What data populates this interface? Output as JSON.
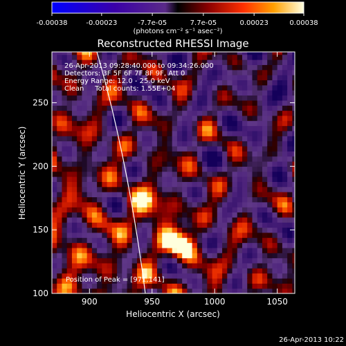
{
  "chart_data": {
    "type": "heatmap",
    "title": "Reconstructed RHESSI Image",
    "xlabel": "Heliocentric X (arcsec)",
    "ylabel": "Heliocentric Y (arcsec)",
    "xlim": [
      870,
      1064
    ],
    "ylim": [
      100,
      290
    ],
    "xticks": [
      "900",
      "950",
      "1000",
      "1050"
    ],
    "yticks": [
      "100",
      "150",
      "200",
      "250"
    ],
    "xtick_values": [
      900,
      950,
      1000,
      1050
    ],
    "ytick_values": [
      100,
      150,
      200,
      250
    ],
    "colorbar": {
      "range": [
        -0.00038,
        0.00038
      ],
      "ticks": [
        "-0.00038",
        "-0.00023",
        "-7.7e-05",
        "7.7e-05",
        "0.00023",
        "0.00038"
      ],
      "tick_values": [
        -0.00038,
        -0.00023,
        -7.7e-05,
        7.7e-05,
        0.00023,
        0.00038
      ],
      "unit_label": "(photons cm⁻² s⁻¹ asec⁻²)"
    },
    "annotations": [
      "26-Apr-2013 09:28:40.000 to 09:34:26.000",
      "Detectors: 3F 5F 6F 7F 8F 9F, Att 0",
      "Energy Range: 12.0 - 25.0 keV",
      "Clean     Total counts: 1.55E+04"
    ],
    "peak_label": "Position of Peak = [971,141]",
    "peak": [
      971,
      141
    ],
    "timestamp": "26-Apr-2013 10:22",
    "colormap": "rhessi-hot",
    "colors": {
      "background": "#000000",
      "limb_line": "#ffffff"
    }
  }
}
